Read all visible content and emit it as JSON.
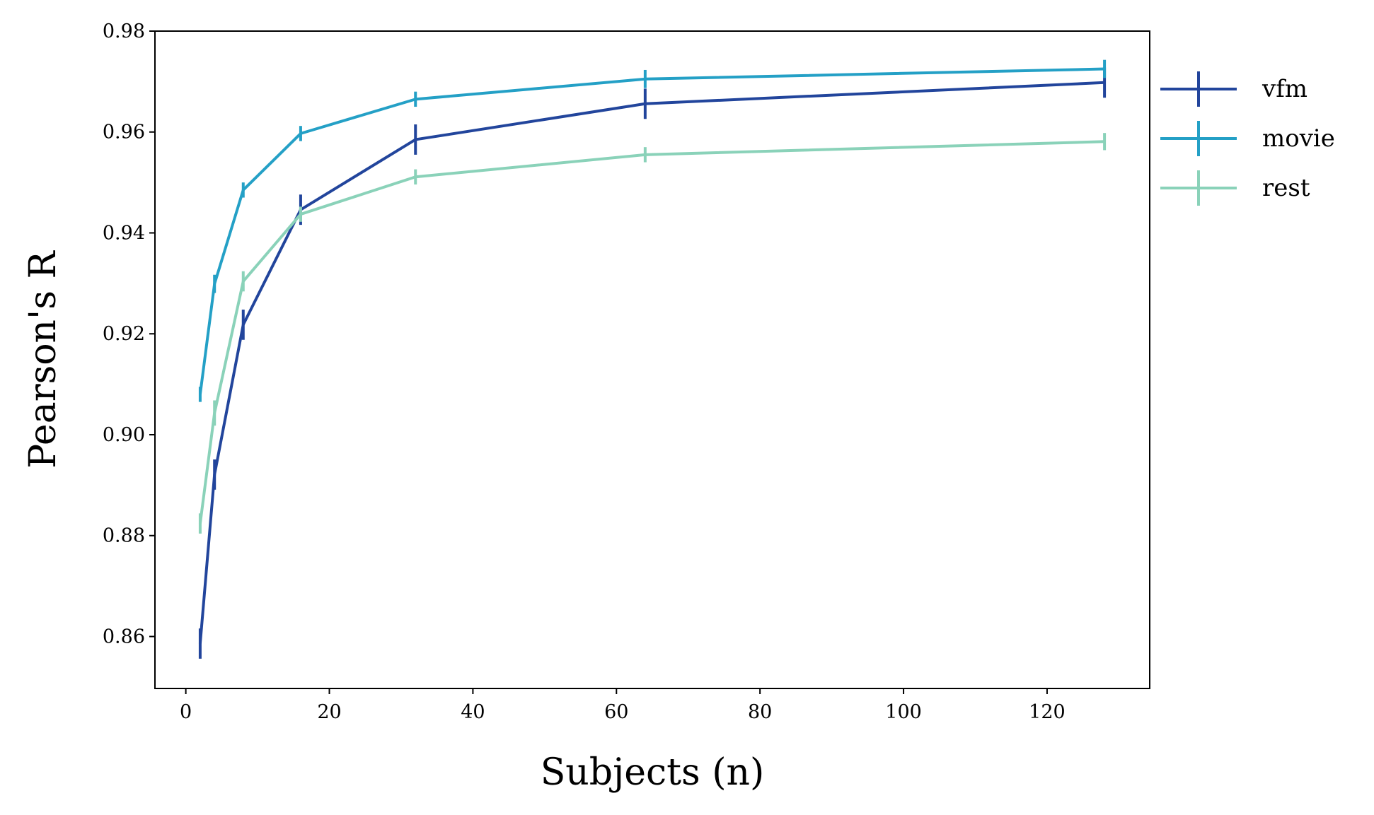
{
  "chart_data": {
    "type": "line",
    "title": "",
    "xlabel": "Subjects (n)",
    "ylabel": "Pearson's R",
    "xlim": [
      -4.3,
      134.3
    ],
    "ylim": [
      0.8497,
      0.98
    ],
    "xticks": [
      0,
      20,
      40,
      60,
      80,
      100,
      120
    ],
    "xtick_labels": [
      "0",
      "20",
      "40",
      "60",
      "80",
      "100",
      "120"
    ],
    "yticks": [
      0.86,
      0.88,
      0.9,
      0.92,
      0.94,
      0.96,
      0.98
    ],
    "ytick_labels": [
      "0.86",
      "0.88",
      "0.90",
      "0.92",
      "0.94",
      "0.96",
      "0.98"
    ],
    "grid": false,
    "legend_position": "outside-right-top",
    "x": [
      2,
      4,
      8,
      16,
      32,
      64,
      128
    ],
    "series": [
      {
        "name": "vfm",
        "color": "#22459c",
        "values": [
          0.8586,
          0.8921,
          0.9218,
          0.9446,
          0.9585,
          0.9656,
          0.9698
        ],
        "errors": [
          0.003,
          0.003,
          0.003,
          0.003,
          0.003,
          0.003,
          0.003
        ]
      },
      {
        "name": "movie",
        "color": "#24a0c6",
        "values": [
          0.908,
          0.9299,
          0.9485,
          0.9597,
          0.9665,
          0.9705,
          0.9725
        ],
        "errors": [
          0.0015,
          0.0018,
          0.0015,
          0.0015,
          0.0015,
          0.0018,
          0.0018
        ]
      },
      {
        "name": "rest",
        "color": "#8ad2b9",
        "values": [
          0.8824,
          0.9043,
          0.9304,
          0.9437,
          0.9511,
          0.9555,
          0.9581
        ],
        "errors": [
          0.002,
          0.0025,
          0.002,
          0.0015,
          0.0015,
          0.0015,
          0.0017
        ]
      }
    ]
  }
}
